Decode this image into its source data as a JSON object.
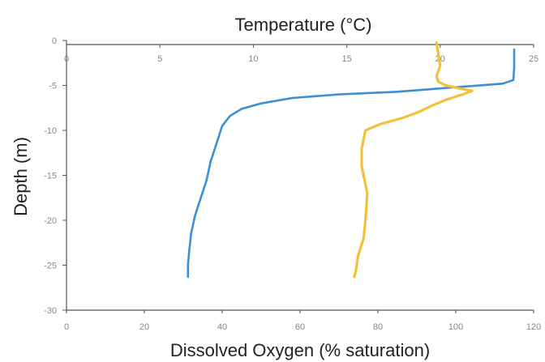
{
  "chart_data": {
    "type": "line",
    "title": "",
    "top_axis": {
      "label": "Temperature (°C)",
      "range": [
        0,
        25
      ],
      "ticks": [
        0,
        5,
        10,
        15,
        20,
        25
      ],
      "tick_labels": [
        "0",
        "5",
        "10",
        "15",
        "20",
        "25"
      ]
    },
    "bottom_axis": {
      "label": "Dissolved Oxygen (% saturation)",
      "range": [
        0,
        120
      ],
      "ticks": [
        0,
        20,
        40,
        60,
        80,
        100,
        120
      ],
      "tick_labels": [
        "0",
        "20",
        "40",
        "60",
        "80",
        "100",
        "120"
      ]
    },
    "y_axis": {
      "label": "Depth (m)",
      "range": [
        -30,
        0
      ],
      "ticks": [
        0,
        -5,
        -10,
        -15,
        -20,
        -25,
        -30
      ],
      "tick_labels": [
        "0",
        "-5",
        "-10",
        "-15",
        "-20",
        "-25",
        "-30"
      ]
    },
    "grid": false,
    "legend": "none",
    "series": [
      {
        "axis": "bottom",
        "color": "#3b8fd6",
        "points": [
          [
            115,
            -1.0
          ],
          [
            115,
            -3.0
          ],
          [
            114.8,
            -4.4
          ],
          [
            112,
            -4.8
          ],
          [
            100,
            -5.2
          ],
          [
            85,
            -5.7
          ],
          [
            70,
            -6.0
          ],
          [
            58,
            -6.4
          ],
          [
            50,
            -7.0
          ],
          [
            45,
            -7.6
          ],
          [
            42,
            -8.4
          ],
          [
            40,
            -9.5
          ],
          [
            38.5,
            -11.5
          ],
          [
            37,
            -13.5
          ],
          [
            36,
            -15.5
          ],
          [
            34.5,
            -17.5
          ],
          [
            33,
            -19.5
          ],
          [
            32,
            -21.5
          ],
          [
            31.5,
            -23.5
          ],
          [
            31.2,
            -25.0
          ],
          [
            31.2,
            -26.3
          ]
        ]
      },
      {
        "axis": "top",
        "color": "#f2c13a",
        "points": [
          [
            19.8,
            -0.2
          ],
          [
            19.9,
            -1.5
          ],
          [
            20.0,
            -2.8
          ],
          [
            19.8,
            -4.0
          ],
          [
            19.9,
            -4.6
          ],
          [
            20.3,
            -5.0
          ],
          [
            21.2,
            -5.4
          ],
          [
            21.7,
            -5.6
          ],
          [
            21.2,
            -6.0
          ],
          [
            20.3,
            -6.6
          ],
          [
            19.5,
            -7.3
          ],
          [
            18.8,
            -8.0
          ],
          [
            18.0,
            -8.6
          ],
          [
            16.8,
            -9.3
          ],
          [
            16.0,
            -10.0
          ],
          [
            15.8,
            -12.0
          ],
          [
            15.8,
            -14.0
          ],
          [
            15.9,
            -15.0
          ],
          [
            16.1,
            -17.0
          ],
          [
            16.0,
            -20.0
          ],
          [
            15.9,
            -22.0
          ],
          [
            15.6,
            -24.0
          ],
          [
            15.5,
            -25.5
          ],
          [
            15.4,
            -26.3
          ]
        ]
      }
    ]
  }
}
